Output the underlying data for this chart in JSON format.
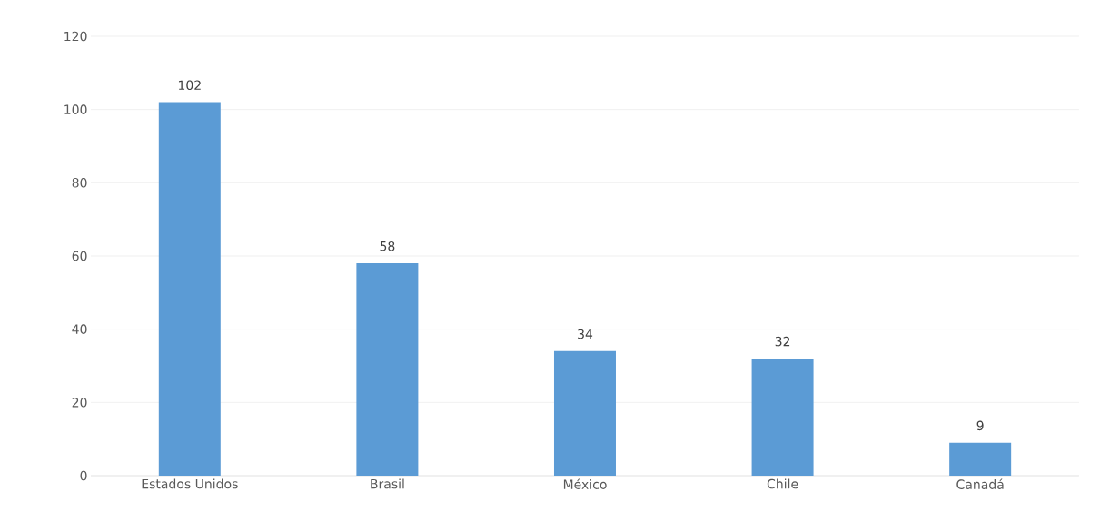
{
  "chart_data": {
    "type": "bar",
    "categories": [
      "Estados Unidos",
      "Brasil",
      "México",
      "Chile",
      "Canadá"
    ],
    "values": [
      102,
      58,
      34,
      32,
      9
    ],
    "color": "#5b9bd5",
    "ylim": [
      0,
      120
    ],
    "yticks": [
      0,
      20,
      40,
      60,
      80,
      100,
      120
    ],
    "grid": "y",
    "data_labels": true
  }
}
